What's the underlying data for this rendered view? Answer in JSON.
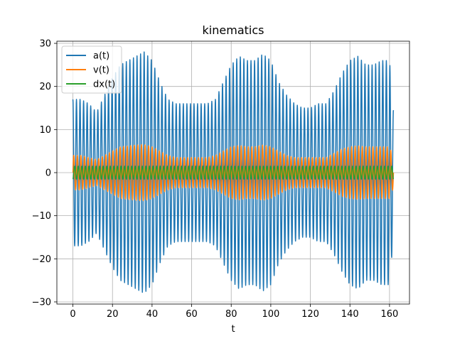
{
  "chart_data": {
    "type": "line",
    "title": "kinematics",
    "xlabel": "t",
    "ylabel": "",
    "xlim": [
      -8.1,
      170.1
    ],
    "ylim": [
      -30.5,
      30.5
    ],
    "xticks": [
      0,
      20,
      40,
      60,
      80,
      100,
      120,
      140,
      160
    ],
    "yticks": [
      -30,
      -20,
      -10,
      0,
      10,
      20,
      30
    ],
    "ytick_labels": [
      "−30",
      "−20",
      "−10",
      "0",
      "10",
      "20",
      "30"
    ],
    "grid": true,
    "legend": "upper-left",
    "oscillation": {
      "t_start": 0,
      "t_end": 162,
      "cycles": 90
    },
    "series": [
      {
        "name": "a(t)",
        "color": "#1f77b4",
        "envelope_t": [
          0,
          4,
          8,
          12,
          16,
          20,
          24,
          28,
          32,
          36,
          40,
          44,
          48,
          52,
          56,
          60,
          64,
          68,
          72,
          76,
          80,
          84,
          88,
          92,
          96,
          100,
          104,
          108,
          112,
          116,
          120,
          124,
          128,
          132,
          136,
          140,
          144,
          148,
          152,
          156,
          160,
          162
        ],
        "envelope_amp": [
          17,
          17,
          16,
          14,
          18,
          22,
          25,
          26,
          27,
          28,
          26,
          21,
          17,
          16,
          16,
          16,
          16,
          16,
          17,
          21,
          25,
          27,
          26,
          26,
          27.5,
          26,
          21,
          18,
          16,
          15,
          15,
          16,
          16,
          19,
          23,
          26,
          27,
          25,
          25,
          26,
          26,
          14.5
        ]
      },
      {
        "name": "v(t)",
        "color": "#ff7f0e",
        "envelope_t": [
          0,
          4,
          8,
          12,
          16,
          20,
          24,
          28,
          32,
          36,
          40,
          44,
          48,
          52,
          56,
          60,
          64,
          68,
          72,
          76,
          80,
          84,
          88,
          92,
          96,
          100,
          104,
          108,
          112,
          116,
          120,
          124,
          128,
          132,
          136,
          140,
          144,
          148,
          152,
          156,
          160,
          162
        ],
        "envelope_amp": [
          4,
          4,
          3.5,
          3,
          4,
          5,
          6,
          6.2,
          6.4,
          6.5,
          6,
          5,
          4,
          3.5,
          3.5,
          3.5,
          3.5,
          3.5,
          4,
          5,
          6,
          6.3,
          6,
          6,
          6.4,
          6,
          5,
          4,
          3.5,
          3.5,
          3.5,
          3.5,
          3.5,
          4.5,
          5.5,
          6,
          6.2,
          6,
          6,
          6,
          6,
          3.5
        ]
      },
      {
        "name": "dx(t)",
        "color": "#2ca02c",
        "envelope_t": [
          0,
          20,
          40,
          60,
          80,
          100,
          120,
          140,
          162
        ],
        "envelope_amp": [
          1.5,
          1.5,
          1.5,
          1.5,
          1.5,
          1.5,
          1.5,
          1.5,
          1.5
        ]
      }
    ]
  }
}
